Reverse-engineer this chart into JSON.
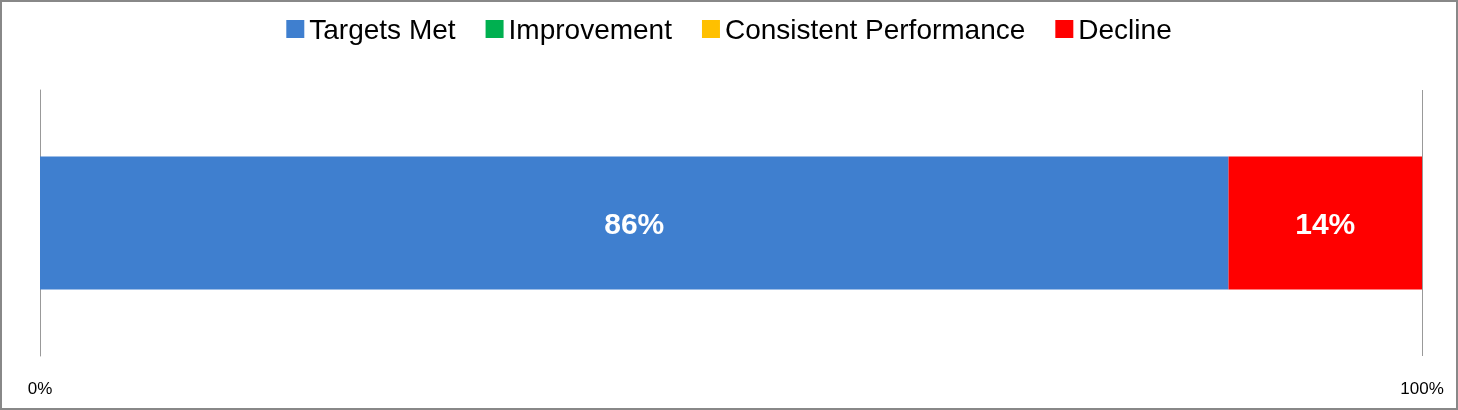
{
  "chart_data": {
    "type": "bar",
    "orientation": "horizontal",
    "stacked": true,
    "categories": [
      null
    ],
    "series": [
      {
        "name": "Targets Met",
        "color": "#3f7fcf",
        "values": [
          86
        ],
        "value_labels": [
          "86%"
        ]
      },
      {
        "name": "Improvement",
        "color": "#00b050",
        "values": [
          0
        ],
        "value_labels": [
          null
        ]
      },
      {
        "name": "Consistent Performance",
        "color": "#ffc000",
        "values": [
          0
        ],
        "value_labels": [
          null
        ]
      },
      {
        "name": "Decline",
        "color": "#ff0000",
        "values": [
          14
        ],
        "value_labels": [
          "14%"
        ]
      }
    ],
    "xlim": [
      0,
      100
    ],
    "xticks": [
      {
        "value": 0,
        "label": "0%"
      },
      {
        "value": 100,
        "label": "100%"
      }
    ],
    "grid": "x",
    "legend": "top"
  }
}
